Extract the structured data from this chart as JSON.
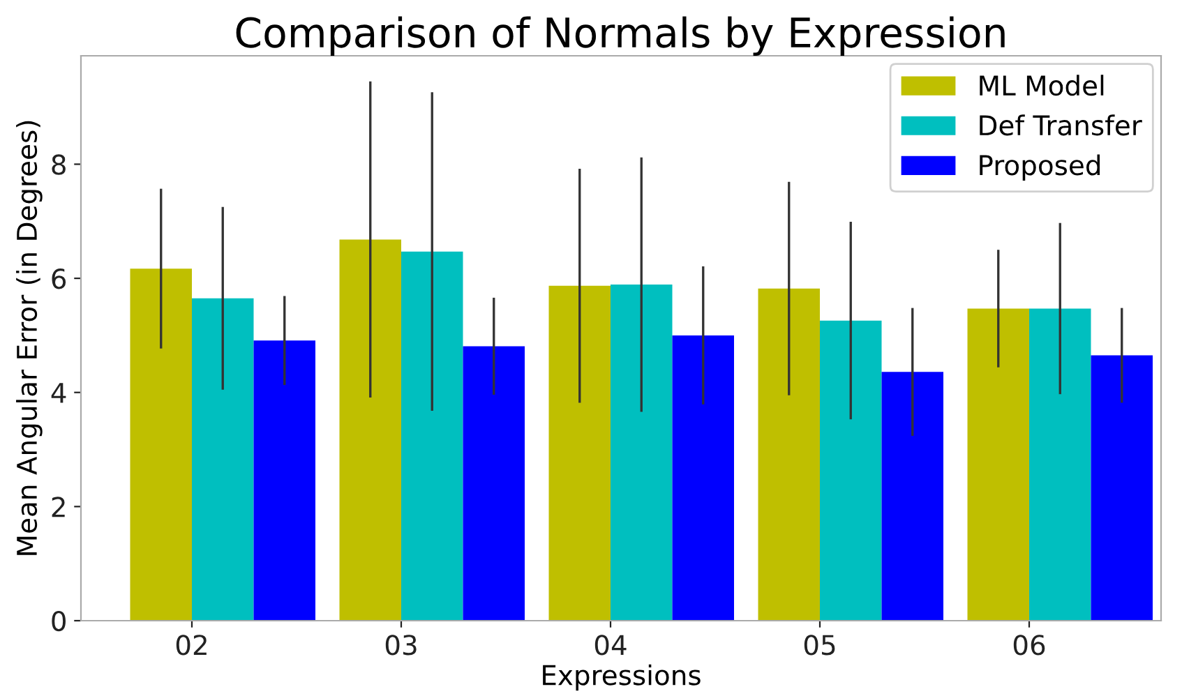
{
  "chart_data": {
    "type": "bar",
    "title": "Comparison of Normals by Expression",
    "xlabel": "Expressions",
    "ylabel": "Mean Angular Error (in Degrees)",
    "categories": [
      "02",
      "03",
      "04",
      "05",
      "06"
    ],
    "series": [
      {
        "name": "ML Model",
        "color": "#bfbf00",
        "values": [
          6.17,
          6.68,
          5.87,
          5.82,
          5.47
        ],
        "errors": [
          1.4,
          2.77,
          2.05,
          1.87,
          1.03
        ]
      },
      {
        "name": "Def Transfer",
        "color": "#00bfbf",
        "values": [
          5.65,
          6.47,
          5.89,
          5.26,
          5.47
        ],
        "errors": [
          1.6,
          2.79,
          2.23,
          1.73,
          1.5
        ]
      },
      {
        "name": "Proposed",
        "color": "#0000ff",
        "values": [
          4.91,
          4.81,
          5.0,
          4.36,
          4.65
        ],
        "errors": [
          0.78,
          0.85,
          1.21,
          1.12,
          0.83
        ]
      }
    ],
    "ylim": [
      0,
      9.9
    ],
    "yticks": [
      0,
      2,
      4,
      6,
      8
    ],
    "grid": false,
    "legend": "top right"
  }
}
